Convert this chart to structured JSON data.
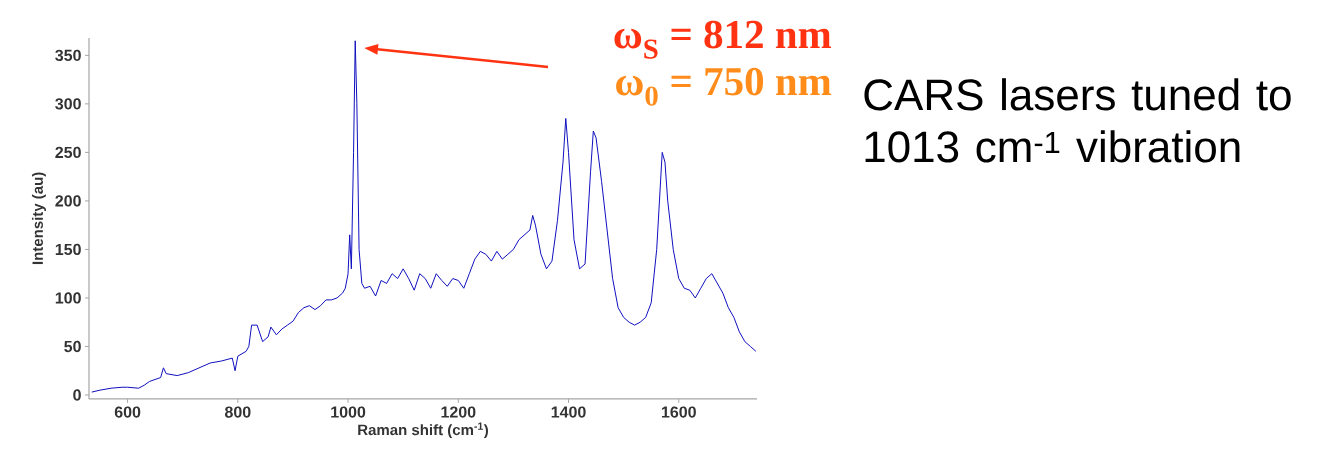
{
  "chart_data": {
    "type": "line",
    "xlabel": "Raman shift (cm$^{-1}$)",
    "ylabel": "Intensity (au)",
    "xlim": [
      530,
      1742
    ],
    "ylim": [
      -4,
      368
    ],
    "xticks": [
      600,
      800,
      1000,
      1200,
      1400,
      1600
    ],
    "yticks": [
      0,
      50,
      100,
      150,
      200,
      250,
      300,
      350
    ],
    "grid": false,
    "series": [
      {
        "color": "#1010c0",
        "x": [
          535,
          550,
          570,
          590,
          600,
          620,
          630,
          640,
          660,
          665,
          670,
          690,
          710,
          730,
          750,
          770,
          790,
          795,
          800,
          815,
          820,
          825,
          835,
          845,
          855,
          860,
          870,
          880,
          890,
          900,
          910,
          920,
          930,
          940,
          950,
          960,
          970,
          980,
          990,
          995,
          1000,
          1003,
          1006,
          1010,
          1013,
          1016,
          1020,
          1025,
          1030,
          1040,
          1050,
          1060,
          1070,
          1080,
          1090,
          1100,
          1110,
          1120,
          1130,
          1140,
          1150,
          1160,
          1170,
          1180,
          1190,
          1200,
          1210,
          1220,
          1230,
          1240,
          1250,
          1260,
          1270,
          1280,
          1290,
          1300,
          1310,
          1320,
          1330,
          1335,
          1340,
          1350,
          1360,
          1370,
          1380,
          1390,
          1395,
          1400,
          1410,
          1420,
          1430,
          1440,
          1445,
          1450,
          1460,
          1470,
          1480,
          1490,
          1500,
          1510,
          1520,
          1530,
          1540,
          1550,
          1560,
          1570,
          1575,
          1580,
          1590,
          1600,
          1610,
          1620,
          1630,
          1640,
          1650,
          1660,
          1670,
          1680,
          1690,
          1700,
          1710,
          1720,
          1730,
          1740
        ],
        "values": [
          3,
          5,
          7,
          8,
          8,
          7,
          10,
          14,
          18,
          28,
          22,
          20,
          23,
          28,
          33,
          35,
          38,
          25,
          40,
          45,
          50,
          72,
          72,
          55,
          60,
          70,
          62,
          68,
          72,
          76,
          85,
          90,
          92,
          88,
          92,
          98,
          98,
          100,
          105,
          110,
          125,
          165,
          130,
          250,
          365,
          300,
          150,
          115,
          110,
          112,
          102,
          118,
          115,
          125,
          120,
          130,
          120,
          108,
          125,
          120,
          110,
          125,
          118,
          112,
          120,
          118,
          110,
          125,
          140,
          148,
          145,
          138,
          148,
          140,
          145,
          150,
          160,
          165,
          170,
          185,
          175,
          145,
          130,
          138,
          180,
          240,
          285,
          250,
          160,
          130,
          135,
          230,
          272,
          265,
          220,
          170,
          120,
          90,
          80,
          75,
          72,
          75,
          80,
          95,
          150,
          250,
          240,
          200,
          150,
          120,
          110,
          108,
          100,
          110,
          120,
          125,
          115,
          105,
          90,
          80,
          65,
          55,
          50,
          45
        ]
      }
    ],
    "annotations": [
      "ω$_{S}$ = 812 nm",
      "ω$_{0}$ = 750 nm",
      "CARS lasers tuned to 1013 cm$^{-1}$ vibration"
    ]
  }
}
